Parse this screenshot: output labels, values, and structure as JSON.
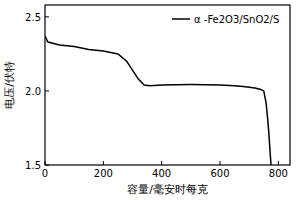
{
  "chart_data": {
    "type": "line",
    "x_label": "容量/毫安时每克",
    "y_label": "电压/伏特",
    "x": [
      0,
      10,
      50,
      100,
      150,
      200,
      250,
      280,
      300,
      320,
      340,
      360,
      400,
      450,
      500,
      550,
      600,
      650,
      680,
      700,
      720,
      740,
      750,
      758,
      764,
      768,
      772,
      775
    ],
    "series": [
      {
        "name": "α -Fe2O3/SnO2/S",
        "color": "#000000",
        "line_style": "solid",
        "values": [
          2.37,
          2.33,
          2.31,
          2.3,
          2.28,
          2.27,
          2.25,
          2.2,
          2.14,
          2.08,
          2.04,
          2.035,
          2.04,
          2.042,
          2.043,
          2.042,
          2.04,
          2.035,
          2.03,
          2.025,
          2.02,
          2.01,
          2.0,
          1.92,
          1.8,
          1.7,
          1.58,
          1.5
        ]
      }
    ],
    "xlim": [
      0,
      840
    ],
    "ylim": [
      1.5,
      2.58
    ],
    "xticks": [
      0,
      200,
      400,
      600,
      800
    ],
    "yticks": [
      1.5,
      {
        "value": 2,
        "label": "2.0"
      },
      2.5
    ],
    "grid": false,
    "legend": "top-right"
  }
}
